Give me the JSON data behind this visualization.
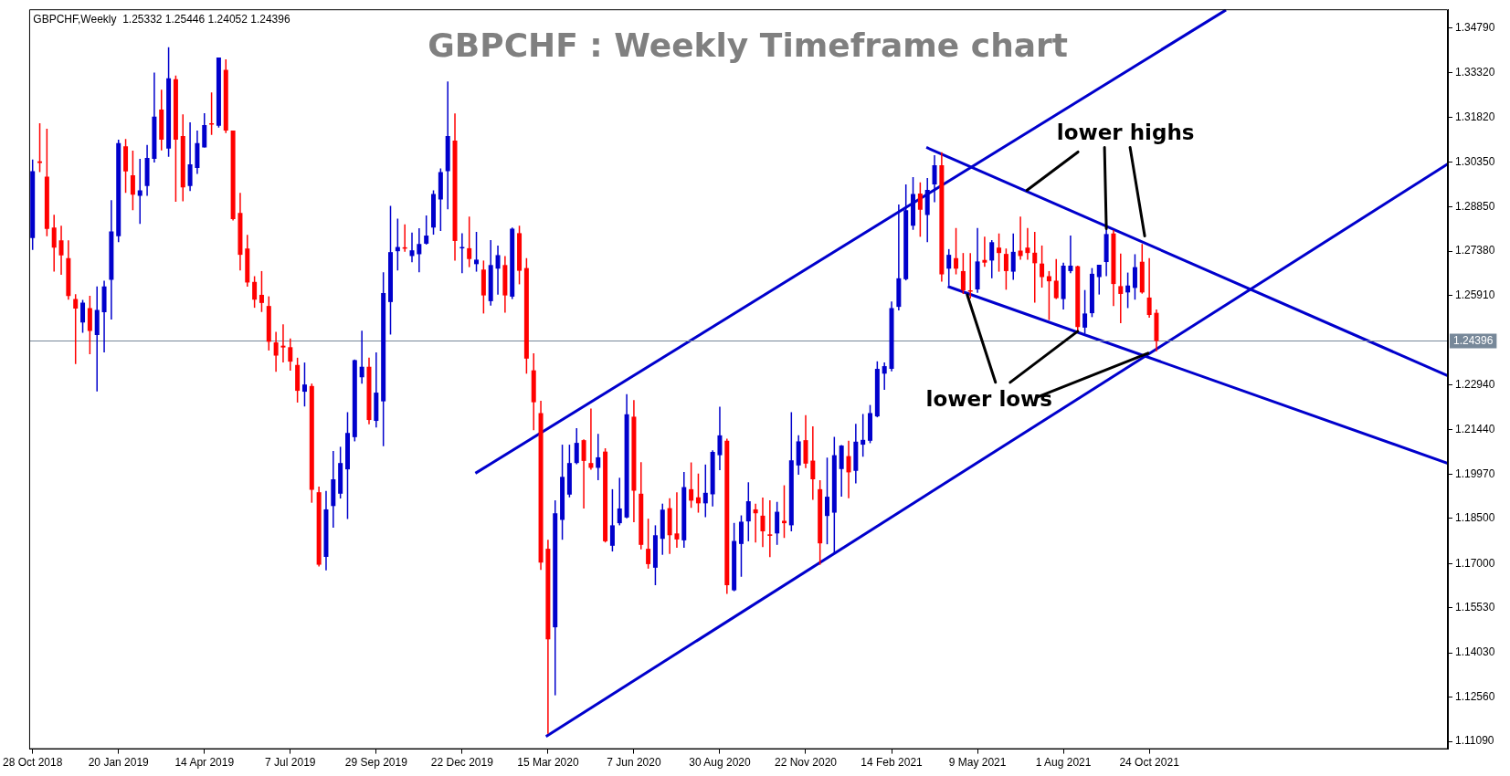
{
  "chart_data": {
    "type": "candlestick",
    "title": "GBPCHF : Weekly Timeframe chart",
    "subtitle": "GBPCHF,Weekly  1.25332 1.25446 1.24052 1.24396",
    "xlim": [
      "2018-10-25",
      "2022-08-12"
    ],
    "xticks": [
      {
        "value": "2018-10-28",
        "label": "28 Oct 2018"
      },
      {
        "value": "2019-01-20",
        "label": "20 Jan 2019"
      },
      {
        "value": "2019-04-14",
        "label": "14 Apr 2019"
      },
      {
        "value": "2019-07-07",
        "label": "7 Jul 2019"
      },
      {
        "value": "2019-09-29",
        "label": "29 Sep 2019"
      },
      {
        "value": "2019-12-22",
        "label": "22 Dec 2019"
      },
      {
        "value": "2020-03-15",
        "label": "15 Mar 2020"
      },
      {
        "value": "2020-06-07",
        "label": "7 Jun 2020"
      },
      {
        "value": "2020-08-30",
        "label": "30 Aug 2020"
      },
      {
        "value": "2020-11-22",
        "label": "22 Nov 2020"
      },
      {
        "value": "2021-02-14",
        "label": "14 Feb 2021"
      },
      {
        "value": "2021-05-09",
        "label": "9 May 2021"
      },
      {
        "value": "2021-08-01",
        "label": "1 Aug 2021"
      },
      {
        "value": "2021-10-24",
        "label": "24 Oct 2021"
      }
    ],
    "ylim": [
      1.1083,
      1.3542
    ],
    "yticks": [
      {
        "value": 1.1109,
        "label": "1.11090"
      },
      {
        "value": 1.1256,
        "label": "1.12560"
      },
      {
        "value": 1.1403,
        "label": "1.14030"
      },
      {
        "value": 1.1553,
        "label": "1.15530"
      },
      {
        "value": 1.17,
        "label": "1.17000"
      },
      {
        "value": 1.185,
        "label": "1.18500"
      },
      {
        "value": 1.1997,
        "label": "1.19970"
      },
      {
        "value": 1.2144,
        "label": "1.21440"
      },
      {
        "value": 1.2294,
        "label": "1.22940"
      },
      {
        "value": 1.2591,
        "label": "1.25910"
      },
      {
        "value": 1.2738,
        "label": "1.27380"
      },
      {
        "value": 1.2885,
        "label": "1.28850"
      },
      {
        "value": 1.3035,
        "label": "1.30350"
      },
      {
        "value": 1.3182,
        "label": "1.31820"
      },
      {
        "value": 1.3332,
        "label": "1.33320"
      },
      {
        "value": 1.3479,
        "label": "1.34790"
      }
    ],
    "ref_lines": [
      {
        "axis": "y",
        "value": 1.24396,
        "label": "1.24396",
        "color": "#778899"
      }
    ],
    "marker": "none",
    "annotations": [
      {
        "text": "lower highs",
        "x": "2021-09-12",
        "y": 1.2813
      },
      {
        "text": "lower lows",
        "x": "2021-08-15",
        "y": 1.2472
      }
    ],
    "series": [
      {
        "x": [
          "2018-10-28",
          "2018-11-04",
          "2018-11-11",
          "2018-11-18",
          "2018-11-25",
          "2018-12-02",
          "2018-12-09",
          "2018-12-16",
          "2018-12-23",
          "2018-12-30",
          "2019-01-06",
          "2019-01-13",
          "2019-01-20",
          "2019-01-27",
          "2019-02-03",
          "2019-02-10",
          "2019-02-17",
          "2019-02-24",
          "2019-03-03",
          "2019-03-10",
          "2019-03-17",
          "2019-03-24",
          "2019-03-31",
          "2019-04-07",
          "2019-04-14",
          "2019-04-21",
          "2019-04-28",
          "2019-05-05",
          "2019-05-12",
          "2019-05-19",
          "2019-05-26",
          "2019-06-02",
          "2019-06-09",
          "2019-06-16",
          "2019-06-23",
          "2019-06-30",
          "2019-07-07",
          "2019-07-14",
          "2019-07-21",
          "2019-07-28",
          "2019-08-04",
          "2019-08-11",
          "2019-08-18",
          "2019-08-25",
          "2019-09-01",
          "2019-09-08",
          "2019-09-15",
          "2019-09-22",
          "2019-09-29",
          "2019-10-06",
          "2019-10-13",
          "2019-10-20",
          "2019-10-27",
          "2019-11-03",
          "2019-11-10",
          "2019-11-17",
          "2019-11-24",
          "2019-12-01",
          "2019-12-08",
          "2019-12-15",
          "2019-12-22",
          "2019-12-29",
          "2020-01-05",
          "2020-01-12",
          "2020-01-19",
          "2020-01-26",
          "2020-02-02",
          "2020-02-09",
          "2020-02-16",
          "2020-02-23",
          "2020-03-01",
          "2020-03-08",
          "2020-03-15",
          "2020-03-22",
          "2020-03-29",
          "2020-04-05",
          "2020-04-12",
          "2020-04-19",
          "2020-04-26",
          "2020-05-03",
          "2020-05-10",
          "2020-05-17",
          "2020-05-24",
          "2020-05-31",
          "2020-06-07",
          "2020-06-14",
          "2020-06-21",
          "2020-06-28",
          "2020-07-05",
          "2020-07-12",
          "2020-07-19",
          "2020-07-26",
          "2020-08-02",
          "2020-08-09",
          "2020-08-16",
          "2020-08-23",
          "2020-08-30",
          "2020-09-06",
          "2020-09-13",
          "2020-09-20",
          "2020-09-27",
          "2020-10-04",
          "2020-10-11",
          "2020-10-18",
          "2020-10-25",
          "2020-11-01",
          "2020-11-08",
          "2020-11-15",
          "2020-11-22",
          "2020-11-29",
          "2020-12-06",
          "2020-12-13",
          "2020-12-20",
          "2020-12-27",
          "2021-01-03",
          "2021-01-10",
          "2021-01-17",
          "2021-01-24",
          "2021-01-31",
          "2021-02-07",
          "2021-02-14",
          "2021-02-21",
          "2021-02-28",
          "2021-03-07",
          "2021-03-14",
          "2021-03-21",
          "2021-03-28",
          "2021-04-04",
          "2021-04-11",
          "2021-04-18",
          "2021-04-25",
          "2021-05-02",
          "2021-05-09",
          "2021-05-16",
          "2021-05-23",
          "2021-05-30",
          "2021-06-06",
          "2021-06-13",
          "2021-06-20",
          "2021-06-27",
          "2021-07-04",
          "2021-07-11",
          "2021-07-18",
          "2021-07-25",
          "2021-08-01",
          "2021-08-08",
          "2021-08-15",
          "2021-08-22",
          "2021-08-29",
          "2021-09-05",
          "2021-09-12",
          "2021-09-19",
          "2021-09-26",
          "2021-10-03",
          "2021-10-10",
          "2021-10-17",
          "2021-10-24",
          "2021-10-31"
        ],
        "ohlc": [
          [
            1.2782,
            1.3043,
            1.2742,
            1.3004
          ],
          [
            1.3037,
            1.3163,
            1.3001,
            1.3031
          ],
          [
            1.2986,
            1.3145,
            1.2788,
            1.2812
          ],
          [
            1.2817,
            1.2859,
            1.267,
            1.275
          ],
          [
            1.2774,
            1.2823,
            1.266,
            1.2724
          ],
          [
            1.2715,
            1.2774,
            1.2577,
            1.2589
          ],
          [
            1.2579,
            1.2595,
            1.2363,
            1.2547
          ],
          [
            1.2501,
            1.2576,
            1.2467,
            1.2567
          ],
          [
            1.2549,
            1.259,
            1.2396,
            1.2473
          ],
          [
            1.2459,
            1.2621,
            1.2272,
            1.2543
          ],
          [
            1.2535,
            1.264,
            1.2402,
            1.2621
          ],
          [
            1.2643,
            1.2908,
            1.2511,
            1.2804
          ],
          [
            1.2788,
            1.3109,
            1.2768,
            1.3097
          ],
          [
            1.3087,
            1.3111,
            1.2932,
            1.3003
          ],
          [
            1.299,
            1.3072,
            1.2874,
            1.2926
          ],
          [
            1.2922,
            1.3045,
            1.2829,
            1.294
          ],
          [
            1.2955,
            1.3091,
            1.2922,
            1.3048
          ],
          [
            1.3045,
            1.3332,
            1.3033,
            1.3185
          ],
          [
            1.3209,
            1.3275,
            1.3073,
            1.3109
          ],
          [
            1.3079,
            1.3416,
            1.3052,
            1.3313
          ],
          [
            1.331,
            1.3322,
            1.2902,
            1.3109
          ],
          [
            1.3121,
            1.3193,
            1.2904,
            1.295
          ],
          [
            1.2955,
            1.3166,
            1.2938,
            1.3027
          ],
          [
            1.3015,
            1.3139,
            1.2995,
            1.3097
          ],
          [
            1.3083,
            1.3197,
            1.3083,
            1.3157
          ],
          [
            1.3163,
            1.3266,
            1.3125,
            1.3161
          ],
          [
            1.3155,
            1.3382,
            1.3149,
            1.3382
          ],
          [
            1.3341,
            1.3376,
            1.3131,
            1.3139
          ],
          [
            1.3139,
            1.3139,
            1.284,
            1.2845
          ],
          [
            1.2865,
            1.2932,
            1.2674,
            1.2726
          ],
          [
            1.2747,
            1.2792,
            1.262,
            1.2634
          ],
          [
            1.2636,
            1.2655,
            1.255,
            1.2577
          ],
          [
            1.2593,
            1.2672,
            1.2536,
            1.2566
          ],
          [
            1.2556,
            1.2588,
            1.2408,
            1.2437
          ],
          [
            1.2435,
            1.247,
            1.2337,
            1.2391
          ],
          [
            1.2424,
            1.2495,
            1.2368,
            1.2418
          ],
          [
            1.2419,
            1.2448,
            1.2341,
            1.2371
          ],
          [
            1.236,
            1.2384,
            1.2235,
            1.2274
          ],
          [
            1.2271,
            1.2368,
            1.2222,
            1.2295
          ],
          [
            1.229,
            1.2298,
            1.1902,
            1.1945
          ],
          [
            1.1937,
            1.1956,
            1.169,
            1.1696
          ],
          [
            1.1722,
            1.1941,
            1.1677,
            1.188
          ],
          [
            1.1891,
            1.2074,
            1.1819,
            1.198
          ],
          [
            1.1932,
            1.2088,
            1.1916,
            1.2034
          ],
          [
            1.2013,
            1.2203,
            1.1848,
            1.2134
          ],
          [
            1.212,
            1.2378,
            1.2106,
            1.2376
          ],
          [
            1.2319,
            1.2474,
            1.2298,
            1.2354
          ],
          [
            1.2354,
            1.2384,
            1.2163,
            1.2177
          ],
          [
            1.2174,
            1.2402,
            1.2152,
            1.2268
          ],
          [
            1.2239,
            1.2668,
            1.209,
            1.2599
          ],
          [
            1.2569,
            1.2889,
            1.2461,
            1.2735
          ],
          [
            1.2738,
            1.2846,
            1.2674,
            1.2752
          ],
          [
            1.2751,
            1.2827,
            1.2736,
            1.2747
          ],
          [
            1.2722,
            1.28,
            1.2701,
            1.2741
          ],
          [
            1.2728,
            1.2814,
            1.2668,
            1.2762
          ],
          [
            1.2763,
            1.2857,
            1.276,
            1.279
          ],
          [
            1.2817,
            1.294,
            1.2793,
            1.2928
          ],
          [
            1.291,
            1.3013,
            1.2805,
            1.3001
          ],
          [
            1.3004,
            1.3302,
            1.2877,
            1.3121
          ],
          [
            1.3106,
            1.3196,
            1.2707,
            1.2772
          ],
          [
            1.2748,
            1.2798,
            1.2665,
            1.2752
          ],
          [
            1.2748,
            1.2853,
            1.2685,
            1.2712
          ],
          [
            1.2695,
            1.2802,
            1.267,
            1.271
          ],
          [
            1.2677,
            1.2707,
            1.2531,
            1.2591
          ],
          [
            1.2572,
            1.2775,
            1.2557,
            1.2692
          ],
          [
            1.268,
            1.2757,
            1.2594,
            1.2725
          ],
          [
            1.2692,
            1.2722,
            1.2534,
            1.2591
          ],
          [
            1.2587,
            1.2817,
            1.2579,
            1.2813
          ],
          [
            1.2798,
            1.2823,
            1.2628,
            1.2673
          ],
          [
            1.2682,
            1.2715,
            1.2331,
            1.2381
          ],
          [
            1.2342,
            1.2399,
            1.2143,
            1.2236
          ],
          [
            1.22,
            1.2241,
            1.1679,
            1.1703
          ],
          [
            1.1749,
            1.1779,
            1.1134,
            1.1448
          ],
          [
            1.1488,
            1.191,
            1.1262,
            1.1867
          ],
          [
            1.1845,
            1.2095,
            1.1779,
            1.1988
          ],
          [
            1.1929,
            1.2095,
            1.192,
            1.2034
          ],
          [
            1.2034,
            1.215,
            1.203,
            1.2101
          ],
          [
            1.211,
            1.2113,
            1.1883,
            1.2041
          ],
          [
            1.2034,
            1.2215,
            1.2012,
            1.2018
          ],
          [
            1.2018,
            1.2131,
            1.1977,
            1.2053
          ],
          [
            1.2072,
            1.2083,
            1.177,
            1.1774
          ],
          [
            1.1759,
            1.1947,
            1.174,
            1.1827
          ],
          [
            1.1834,
            1.1985,
            1.1827,
            1.1883
          ],
          [
            1.1853,
            1.2263,
            1.185,
            1.2196
          ],
          [
            1.2188,
            1.2243,
            1.1837,
            1.1942
          ],
          [
            1.1932,
            1.2037,
            1.1747,
            1.1762
          ],
          [
            1.1749,
            1.1849,
            1.1683,
            1.1698
          ],
          [
            1.1686,
            1.1827,
            1.1628,
            1.1794
          ],
          [
            1.1782,
            1.1899,
            1.1729,
            1.1879
          ],
          [
            1.1884,
            1.1917,
            1.1732,
            1.1794
          ],
          [
            1.18,
            1.1937,
            1.1752,
            1.178
          ],
          [
            1.1777,
            1.2004,
            1.1752,
            1.1954
          ],
          [
            1.1947,
            1.2036,
            1.1885,
            1.1909
          ],
          [
            1.192,
            1.1999,
            1.1869,
            1.19
          ],
          [
            1.19,
            1.2029,
            1.1854,
            1.1935
          ],
          [
            1.193,
            1.2076,
            1.189,
            1.2071
          ],
          [
            1.206,
            1.2221,
            1.201,
            1.2126
          ],
          [
            1.2108,
            1.2115,
            1.1599,
            1.1628
          ],
          [
            1.1611,
            1.1835,
            1.1608,
            1.1775
          ],
          [
            1.1765,
            1.186,
            1.1656,
            1.1839
          ],
          [
            1.184,
            1.197,
            1.1774,
            1.1907
          ],
          [
            1.188,
            1.1899,
            1.177,
            1.1867
          ],
          [
            1.1859,
            1.1919,
            1.1755,
            1.1807
          ],
          [
            1.1797,
            1.191,
            1.1721,
            1.1792
          ],
          [
            1.18,
            1.1905,
            1.1762,
            1.1872
          ],
          [
            1.1842,
            1.196,
            1.1785,
            1.1834
          ],
          [
            1.1827,
            1.2203,
            1.1807,
            1.2043
          ],
          [
            1.2026,
            1.2126,
            1.1995,
            1.2106
          ],
          [
            1.211,
            1.2193,
            1.2017,
            1.2032
          ],
          [
            1.2042,
            1.2156,
            1.1912,
            1.198
          ],
          [
            1.1947,
            1.1977,
            1.1696,
            1.1767
          ],
          [
            1.1858,
            1.2052,
            1.1764,
            1.1922
          ],
          [
            1.1869,
            1.2121,
            1.1734,
            1.206
          ],
          [
            1.2014,
            1.2094,
            1.1922,
            1.2092
          ],
          [
            1.2057,
            1.2108,
            1.1917,
            1.2003
          ],
          [
            1.2008,
            1.2164,
            1.1966,
            1.2105
          ],
          [
            1.2095,
            1.2197,
            1.2055,
            1.2111
          ],
          [
            1.2108,
            1.2227,
            1.21,
            1.22
          ],
          [
            1.2189,
            1.2372,
            1.2186,
            1.2347
          ],
          [
            1.2331,
            1.2368,
            1.2277,
            1.2356
          ],
          [
            1.2347,
            1.2571,
            1.2339,
            1.2549
          ],
          [
            1.2553,
            1.2893,
            1.2541,
            1.2648
          ],
          [
            1.2645,
            1.296,
            1.2641,
            1.2874
          ],
          [
            1.2823,
            1.2984,
            1.2809,
            1.2928
          ],
          [
            1.293,
            1.2967,
            1.2786,
            1.2876
          ],
          [
            1.2858,
            1.2981,
            1.2768,
            1.2942
          ],
          [
            1.296,
            1.3057,
            1.2901,
            1.3024
          ],
          [
            1.3024,
            1.3067,
            1.2637,
            1.2661
          ],
          [
            1.268,
            1.2745,
            1.2624,
            1.2726
          ],
          [
            1.2715,
            1.2815,
            1.2661,
            1.268
          ],
          [
            1.2672,
            1.2732,
            1.2596,
            1.2608
          ],
          [
            1.2608,
            1.2732,
            1.2581,
            1.2605
          ],
          [
            1.2611,
            1.2815,
            1.26,
            1.2704
          ],
          [
            1.2709,
            1.2786,
            1.2686,
            1.27
          ],
          [
            1.2707,
            1.2775,
            1.2648,
            1.2768
          ],
          [
            1.275,
            1.2797,
            1.267,
            1.2732
          ],
          [
            1.2729,
            1.2747,
            1.261,
            1.2672
          ],
          [
            1.267,
            1.2797,
            1.2643,
            1.2736
          ],
          [
            1.274,
            1.2853,
            1.271,
            1.2722
          ],
          [
            1.275,
            1.2815,
            1.271,
            1.2732
          ],
          [
            1.2733,
            1.2802,
            1.2567,
            1.2698
          ],
          [
            1.2697,
            1.2757,
            1.2617,
            1.2652
          ],
          [
            1.2655,
            1.2672,
            1.2509,
            1.2638
          ],
          [
            1.264,
            1.2712,
            1.2579,
            1.2582
          ],
          [
            1.2579,
            1.27,
            1.2544,
            1.269
          ],
          [
            1.2672,
            1.279,
            1.2665,
            1.269
          ],
          [
            1.2688,
            1.269,
            1.2472,
            1.2486
          ],
          [
            1.2484,
            1.2609,
            1.2464,
            1.2531
          ],
          [
            1.2532,
            1.2682,
            1.2519,
            1.2663
          ],
          [
            1.2652,
            1.2693,
            1.2594,
            1.2693
          ],
          [
            1.2702,
            1.2813,
            1.2655,
            1.2795
          ],
          [
            1.2797,
            1.2808,
            1.2556,
            1.2629
          ],
          [
            1.2622,
            1.273,
            1.2499,
            1.2596
          ],
          [
            1.2601,
            1.2667,
            1.2549,
            1.2624
          ],
          [
            1.2616,
            1.2728,
            1.2577,
            1.2685
          ],
          [
            1.2703,
            1.2762,
            1.2597,
            1.2601
          ],
          [
            1.2584,
            1.2715,
            1.2517,
            1.2526
          ],
          [
            1.25332,
            1.25446,
            1.24052,
            1.24396
          ]
        ],
        "colors": [
          "#0000cc",
          "#ff0000",
          "#ff0000",
          "#ff0000",
          "#ff0000",
          "#ff0000",
          "#ff0000",
          "#0000cc",
          "#ff0000",
          "#0000cc",
          "#0000cc",
          "#0000cc",
          "#0000cc",
          "#ff0000",
          "#ff0000",
          "#0000cc",
          "#0000cc",
          "#0000cc",
          "#ff0000",
          "#0000cc",
          "#ff0000",
          "#ff0000",
          "#0000cc",
          "#0000cc",
          "#0000cc",
          "#ff0000",
          "#0000cc",
          "#ff0000",
          "#ff0000",
          "#ff0000",
          "#ff0000",
          "#ff0000",
          "#ff0000",
          "#ff0000",
          "#ff0000",
          "#ff0000",
          "#ff0000",
          "#ff0000",
          "#0000cc",
          "#ff0000",
          "#ff0000",
          "#0000cc",
          "#0000cc",
          "#0000cc",
          "#0000cc",
          "#0000cc",
          "#0000cc",
          "#ff0000",
          "#0000cc",
          "#0000cc",
          "#0000cc",
          "#0000cc",
          "#ff0000",
          "#0000cc",
          "#0000cc",
          "#0000cc",
          "#0000cc",
          "#0000cc",
          "#0000cc",
          "#ff0000",
          "#0000cc",
          "#ff0000",
          "#0000cc",
          "#ff0000",
          "#0000cc",
          "#0000cc",
          "#ff0000",
          "#0000cc",
          "#ff0000",
          "#ff0000",
          "#ff0000",
          "#ff0000",
          "#ff0000",
          "#0000cc",
          "#0000cc",
          "#0000cc",
          "#0000cc",
          "#ff0000",
          "#ff0000",
          "#0000cc",
          "#ff0000",
          "#0000cc",
          "#0000cc",
          "#0000cc",
          "#ff0000",
          "#ff0000",
          "#ff0000",
          "#0000cc",
          "#0000cc",
          "#ff0000",
          "#ff0000",
          "#0000cc",
          "#ff0000",
          "#ff0000",
          "#0000cc",
          "#0000cc",
          "#0000cc",
          "#ff0000",
          "#0000cc",
          "#0000cc",
          "#0000cc",
          "#ff0000",
          "#ff0000",
          "#ff0000",
          "#0000cc",
          "#ff0000",
          "#0000cc",
          "#0000cc",
          "#ff0000",
          "#ff0000",
          "#ff0000",
          "#0000cc",
          "#0000cc",
          "#0000cc",
          "#ff0000",
          "#0000cc",
          "#0000cc",
          "#0000cc",
          "#0000cc",
          "#0000cc",
          "#0000cc",
          "#0000cc",
          "#0000cc",
          "#0000cc",
          "#ff0000",
          "#0000cc",
          "#0000cc",
          "#ff0000",
          "#0000cc",
          "#ff0000",
          "#ff0000",
          "#ff0000",
          "#0000cc",
          "#ff0000",
          "#0000cc",
          "#ff0000",
          "#ff0000",
          "#0000cc",
          "#ff0000",
          "#ff0000",
          "#ff0000",
          "#ff0000",
          "#ff0000",
          "#ff0000",
          "#0000cc",
          "#0000cc",
          "#ff0000",
          "#0000cc",
          "#0000cc",
          "#0000cc",
          "#0000cc",
          "#ff0000",
          "#ff0000",
          "#0000cc",
          "#0000cc",
          "#ff0000",
          "#ff0000",
          "#ff0000"
        ]
      },
      {
        "type": "line",
        "color": "#0000cc",
        "x": [
          "2020-01-04",
          "2022-01-07"
        ],
        "values": [
          1.2,
          1.354
        ]
      },
      {
        "type": "line",
        "color": "#0000cc",
        "x": [
          "2020-03-13",
          "2022-08-12"
        ],
        "values": [
          1.1125,
          1.3028
        ]
      },
      {
        "type": "line",
        "color": "#0000cc",
        "x": [
          "2021-03-20",
          "2022-08-12"
        ],
        "values": [
          1.3083,
          1.2324
        ]
      },
      {
        "type": "line",
        "color": "#0000cc",
        "x": [
          "2021-04-10",
          "2022-08-12"
        ],
        "values": [
          1.2621,
          1.2033
        ]
      }
    ]
  }
}
